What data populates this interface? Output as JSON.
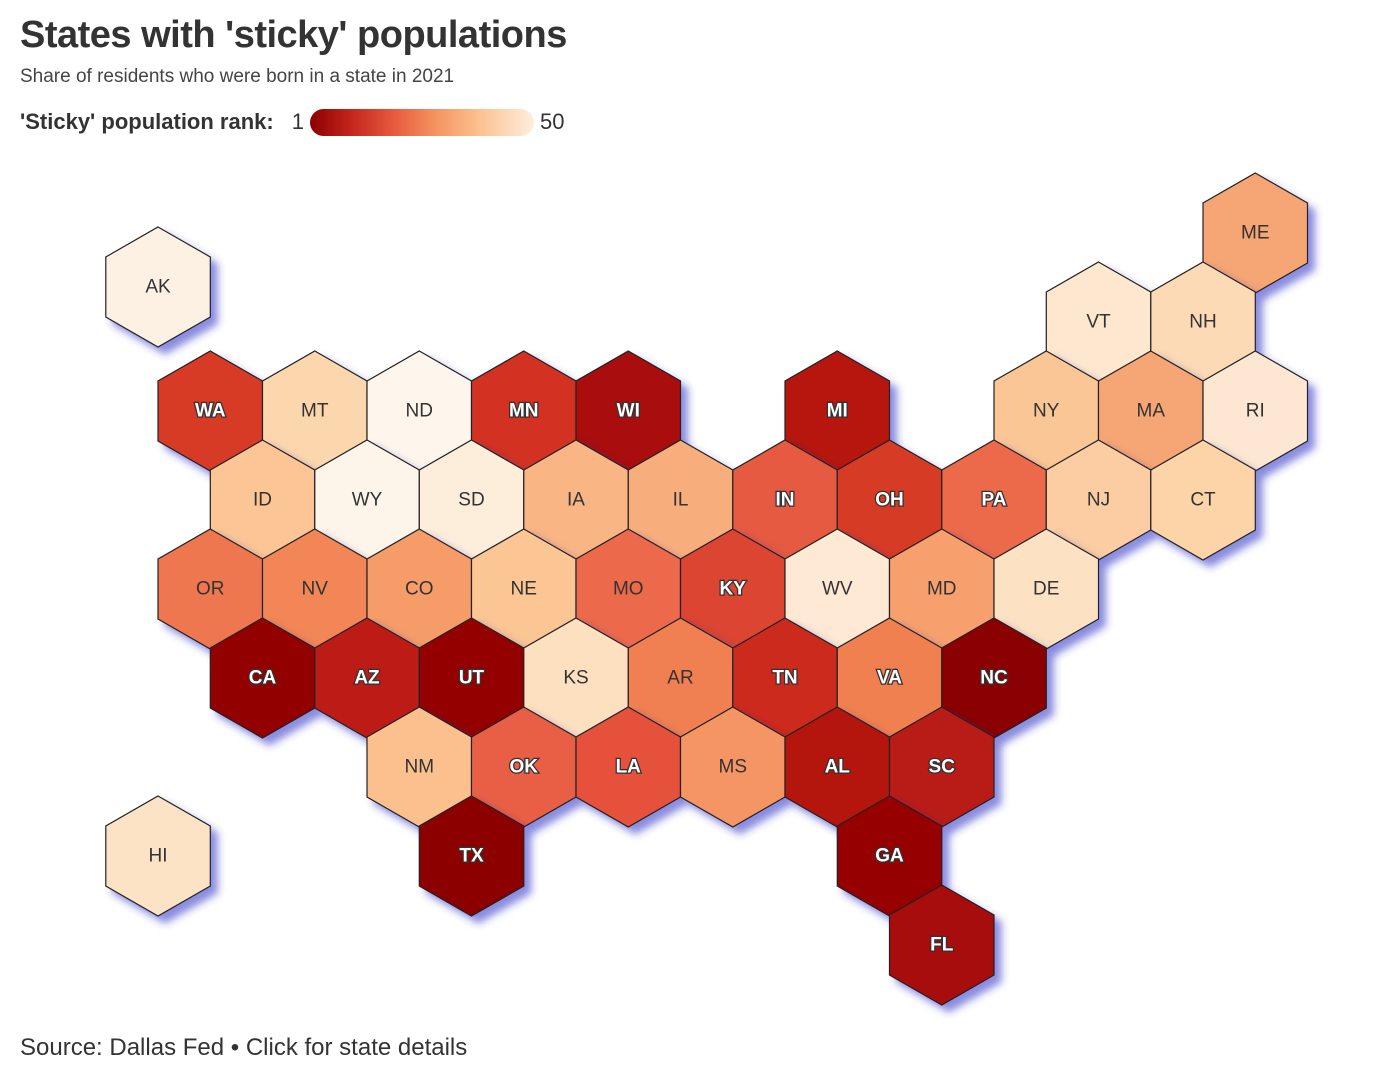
{
  "title": "States with 'sticky' populations",
  "subtitle": "Share of residents who were born in a state in 2021",
  "legend": {
    "label": "'Sticky' population rank:",
    "min": "1",
    "max": "50",
    "colors": [
      "#8b0000",
      "#c3241c",
      "#e5563c",
      "#f4905e",
      "#fcc08e",
      "#feeedd"
    ]
  },
  "source": "Source: Dallas Fed • Click for state details",
  "states": [
    {
      "abbr": "AK",
      "row": 0,
      "col": 0,
      "color": "#fdf1e3",
      "label_style": "dark"
    },
    {
      "abbr": "ME",
      "row": -1,
      "col": 10.5,
      "color": "#f6a574",
      "label_style": "dark"
    },
    {
      "abbr": "VT",
      "row": 0,
      "col": 9.0,
      "color": "#fde8cf",
      "label_style": "dark"
    },
    {
      "abbr": "NH",
      "row": 0,
      "col": 10.0,
      "color": "#fcdab6",
      "label_style": "dark"
    },
    {
      "abbr": "WA",
      "row": 1,
      "col": 0.5,
      "color": "#d73a27",
      "label_style": "light"
    },
    {
      "abbr": "MT",
      "row": 1,
      "col": 1.5,
      "color": "#fcd7ae",
      "label_style": "dark"
    },
    {
      "abbr": "ND",
      "row": 1,
      "col": 2.5,
      "color": "#fef6ec",
      "label_style": "dark"
    },
    {
      "abbr": "MN",
      "row": 1,
      "col": 3.5,
      "color": "#d33224",
      "label_style": "light"
    },
    {
      "abbr": "WI",
      "row": 1,
      "col": 4.5,
      "color": "#a90d07",
      "label_style": "light"
    },
    {
      "abbr": "MI",
      "row": 1,
      "col": 6.5,
      "color": "#b61711",
      "label_style": "light"
    },
    {
      "abbr": "NY",
      "row": 1,
      "col": 8.5,
      "color": "#fbc696",
      "label_style": "dark"
    },
    {
      "abbr": "MA",
      "row": 1,
      "col": 9.5,
      "color": "#f6a574",
      "label_style": "dark"
    },
    {
      "abbr": "RI",
      "row": 1,
      "col": 10.5,
      "color": "#fde7d2",
      "label_style": "dark"
    },
    {
      "abbr": "ID",
      "row": 2,
      "col": 1.0,
      "color": "#fbc596",
      "label_style": "dark"
    },
    {
      "abbr": "WY",
      "row": 2,
      "col": 2.0,
      "color": "#fef5ea",
      "label_style": "dark"
    },
    {
      "abbr": "SD",
      "row": 2,
      "col": 3.0,
      "color": "#fdeddb",
      "label_style": "dark"
    },
    {
      "abbr": "IA",
      "row": 2,
      "col": 4.0,
      "color": "#f9b584",
      "label_style": "dark"
    },
    {
      "abbr": "IL",
      "row": 2,
      "col": 5.0,
      "color": "#f8ae7c",
      "label_style": "dark"
    },
    {
      "abbr": "IN",
      "row": 2,
      "col": 6.0,
      "color": "#e55a40",
      "label_style": "light"
    },
    {
      "abbr": "OH",
      "row": 2,
      "col": 7.0,
      "color": "#d63b26",
      "label_style": "light"
    },
    {
      "abbr": "PA",
      "row": 2,
      "col": 8.0,
      "color": "#ec6a4a",
      "label_style": "light"
    },
    {
      "abbr": "NJ",
      "row": 2,
      "col": 9.0,
      "color": "#fccda3",
      "label_style": "dark"
    },
    {
      "abbr": "CT",
      "row": 2,
      "col": 10.0,
      "color": "#fcd4a8",
      "label_style": "dark"
    },
    {
      "abbr": "OR",
      "row": 3,
      "col": 0.5,
      "color": "#ee774f",
      "label_style": "dark"
    },
    {
      "abbr": "NV",
      "row": 3,
      "col": 1.5,
      "color": "#f28657",
      "label_style": "dark"
    },
    {
      "abbr": "CO",
      "row": 3,
      "col": 2.5,
      "color": "#f59c69",
      "label_style": "dark"
    },
    {
      "abbr": "NE",
      "row": 3,
      "col": 3.5,
      "color": "#fbc594",
      "label_style": "dark"
    },
    {
      "abbr": "MO",
      "row": 3,
      "col": 4.5,
      "color": "#ec6b4c",
      "label_style": "dark"
    },
    {
      "abbr": "KY",
      "row": 3,
      "col": 5.5,
      "color": "#db4430",
      "label_style": "light"
    },
    {
      "abbr": "WV",
      "row": 3,
      "col": 6.5,
      "color": "#fee9d4",
      "label_style": "dark"
    },
    {
      "abbr": "MD",
      "row": 3,
      "col": 7.5,
      "color": "#f7a06e",
      "label_style": "dark"
    },
    {
      "abbr": "DE",
      "row": 3,
      "col": 8.5,
      "color": "#fde1c3",
      "label_style": "dark"
    },
    {
      "abbr": "CA",
      "row": 4,
      "col": 1.0,
      "color": "#930303",
      "label_style": "light"
    },
    {
      "abbr": "AZ",
      "row": 4,
      "col": 2.0,
      "color": "#bd1b14",
      "label_style": "light"
    },
    {
      "abbr": "UT",
      "row": 4,
      "col": 3.0,
      "color": "#940404",
      "label_style": "light"
    },
    {
      "abbr": "KS",
      "row": 4,
      "col": 4.0,
      "color": "#fde0c0",
      "label_style": "dark"
    },
    {
      "abbr": "AR",
      "row": 4,
      "col": 5.0,
      "color": "#f08051",
      "label_style": "dark"
    },
    {
      "abbr": "TN",
      "row": 4,
      "col": 6.0,
      "color": "#cc2b1f",
      "label_style": "light"
    },
    {
      "abbr": "VA",
      "row": 4,
      "col": 7.0,
      "color": "#f0804f",
      "label_style": "light"
    },
    {
      "abbr": "NC",
      "row": 4,
      "col": 8.0,
      "color": "#8b0000",
      "label_style": "light"
    },
    {
      "abbr": "NM",
      "row": 5,
      "col": 2.5,
      "color": "#fbc08e",
      "label_style": "dark"
    },
    {
      "abbr": "OK",
      "row": 5,
      "col": 3.5,
      "color": "#e85f44",
      "label_style": "light"
    },
    {
      "abbr": "LA",
      "row": 5,
      "col": 4.5,
      "color": "#e5513a",
      "label_style": "light"
    },
    {
      "abbr": "MS",
      "row": 5,
      "col": 5.5,
      "color": "#f49563",
      "label_style": "dark"
    },
    {
      "abbr": "AL",
      "row": 5,
      "col": 6.5,
      "color": "#b41510",
      "label_style": "light"
    },
    {
      "abbr": "SC",
      "row": 5,
      "col": 7.5,
      "color": "#b91a12",
      "label_style": "light"
    },
    {
      "abbr": "HI",
      "row": 6,
      "col": 0,
      "color": "#fde3c6",
      "label_style": "dark"
    },
    {
      "abbr": "TX",
      "row": 6,
      "col": 3.0,
      "color": "#8d0101",
      "label_style": "light"
    },
    {
      "abbr": "GA",
      "row": 6,
      "col": 7.0,
      "color": "#960505",
      "label_style": "light"
    },
    {
      "abbr": "FL",
      "row": 7,
      "col": 7.5,
      "color": "#a70b08",
      "label_style": "light"
    }
  ]
}
